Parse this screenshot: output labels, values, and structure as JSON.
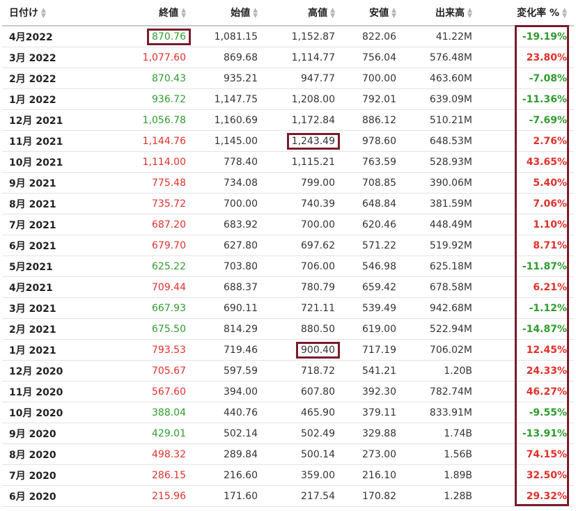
{
  "headers": {
    "date": "日付け",
    "close": "終値",
    "open": "始値",
    "high": "高値",
    "low": "安値",
    "volume": "出来高",
    "change": "変化率 %"
  },
  "sort_icon": "sort-arrows-icon",
  "colors": {
    "up": "#e0302b",
    "down": "#2e9b2e",
    "highlight": "#7a1b2b"
  },
  "rows": [
    {
      "date": "4月2022",
      "close": "870.76",
      "open": "1,081.15",
      "high": "1,152.87",
      "low": "822.06",
      "volume": "41.22M",
      "change": "-19.19%",
      "dir": "down",
      "close_box": true
    },
    {
      "date": "3月 2022",
      "close": "1,077.60",
      "open": "869.68",
      "high": "1,114.77",
      "low": "756.04",
      "volume": "576.48M",
      "change": "23.80%",
      "dir": "up"
    },
    {
      "date": "2月 2022",
      "close": "870.43",
      "open": "935.21",
      "high": "947.77",
      "low": "700.00",
      "volume": "463.60M",
      "change": "-7.08%",
      "dir": "down"
    },
    {
      "date": "1月 2022",
      "close": "936.72",
      "open": "1,147.75",
      "high": "1,208.00",
      "low": "792.01",
      "volume": "639.09M",
      "change": "-11.36%",
      "dir": "down"
    },
    {
      "date": "12月 2021",
      "close": "1,056.78",
      "open": "1,160.69",
      "high": "1,172.84",
      "low": "886.12",
      "volume": "510.21M",
      "change": "-7.69%",
      "dir": "down"
    },
    {
      "date": "11月 2021",
      "close": "1,144.76",
      "open": "1,145.00",
      "high": "1,243.49",
      "low": "978.60",
      "volume": "648.53M",
      "change": "2.76%",
      "dir": "up",
      "high_box": true
    },
    {
      "date": "10月 2021",
      "close": "1,114.00",
      "open": "778.40",
      "high": "1,115.21",
      "low": "763.59",
      "volume": "528.93M",
      "change": "43.65%",
      "dir": "up"
    },
    {
      "date": "9月 2021",
      "close": "775.48",
      "open": "734.08",
      "high": "799.00",
      "low": "708.85",
      "volume": "390.06M",
      "change": "5.40%",
      "dir": "up"
    },
    {
      "date": "8月 2021",
      "close": "735.72",
      "open": "700.00",
      "high": "740.39",
      "low": "648.84",
      "volume": "381.59M",
      "change": "7.06%",
      "dir": "up"
    },
    {
      "date": "7月 2021",
      "close": "687.20",
      "open": "683.92",
      "high": "700.00",
      "low": "620.46",
      "volume": "448.49M",
      "change": "1.10%",
      "dir": "up"
    },
    {
      "date": "6月 2021",
      "close": "679.70",
      "open": "627.80",
      "high": "697.62",
      "low": "571.22",
      "volume": "519.92M",
      "change": "8.71%",
      "dir": "up"
    },
    {
      "date": "5月2021",
      "close": "625.22",
      "open": "703.80",
      "high": "706.00",
      "low": "546.98",
      "volume": "625.18M",
      "change": "-11.87%",
      "dir": "down"
    },
    {
      "date": "4月2021",
      "close": "709.44",
      "open": "688.37",
      "high": "780.79",
      "low": "659.42",
      "volume": "678.58M",
      "change": "6.21%",
      "dir": "up"
    },
    {
      "date": "3月 2021",
      "close": "667.93",
      "open": "690.11",
      "high": "721.11",
      "low": "539.49",
      "volume": "942.68M",
      "change": "-1.12%",
      "dir": "down"
    },
    {
      "date": "2月 2021",
      "close": "675.50",
      "open": "814.29",
      "high": "880.50",
      "low": "619.00",
      "volume": "522.94M",
      "change": "-14.87%",
      "dir": "down"
    },
    {
      "date": "1月 2021",
      "close": "793.53",
      "open": "719.46",
      "high": "900.40",
      "low": "717.19",
      "volume": "706.02M",
      "change": "12.45%",
      "dir": "up",
      "high_box": true
    },
    {
      "date": "12月 2020",
      "close": "705.67",
      "open": "597.59",
      "high": "718.72",
      "low": "541.21",
      "volume": "1.20B",
      "change": "24.33%",
      "dir": "up"
    },
    {
      "date": "11月 2020",
      "close": "567.60",
      "open": "394.00",
      "high": "607.80",
      "low": "392.30",
      "volume": "782.74M",
      "change": "46.27%",
      "dir": "up"
    },
    {
      "date": "10月 2020",
      "close": "388.04",
      "open": "440.76",
      "high": "465.90",
      "low": "379.11",
      "volume": "833.91M",
      "change": "-9.55%",
      "dir": "down"
    },
    {
      "date": "9月 2020",
      "close": "429.01",
      "open": "502.14",
      "high": "502.49",
      "low": "329.88",
      "volume": "1.74B",
      "change": "-13.91%",
      "dir": "down"
    },
    {
      "date": "8月 2020",
      "close": "498.32",
      "open": "289.84",
      "high": "500.14",
      "low": "273.00",
      "volume": "1.56B",
      "change": "74.15%",
      "dir": "up"
    },
    {
      "date": "7月 2020",
      "close": "286.15",
      "open": "216.60",
      "high": "359.00",
      "low": "216.10",
      "volume": "1.89B",
      "change": "32.50%",
      "dir": "up"
    },
    {
      "date": "6月 2020",
      "close": "215.96",
      "open": "171.60",
      "high": "217.54",
      "low": "170.82",
      "volume": "1.28B",
      "change": "29.32%",
      "dir": "up"
    }
  ]
}
